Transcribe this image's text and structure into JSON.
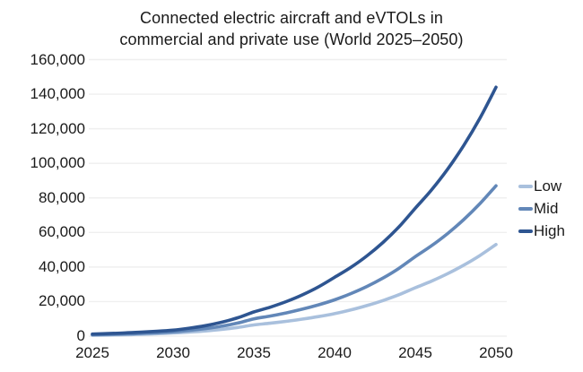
{
  "chart_data": {
    "type": "line",
    "title": "Connected electric aircraft and eVTOLs in commercial and private use (World 2025–2050)",
    "title_lines": [
      "Connected electric aircraft and eVTOLs in",
      "commercial and private use (World 2025–2050)"
    ],
    "x": [
      2025,
      2030,
      2035,
      2040,
      2045,
      2050
    ],
    "xtick_labels": [
      "2025",
      "2030",
      "2035",
      "2040",
      "2045",
      "2050"
    ],
    "ytick_values": [
      0,
      20000,
      40000,
      60000,
      80000,
      100000,
      120000,
      140000,
      160000
    ],
    "ytick_labels": [
      "0",
      "20,000",
      "40,000",
      "60,000",
      "80,000",
      "100,000",
      "120,000",
      "140,000",
      "160,000"
    ],
    "ylim": [
      0,
      160000
    ],
    "xlim": [
      2025,
      2050
    ],
    "xlabel": "",
    "ylabel": "",
    "grid": "horizontal",
    "legend_position": "right",
    "series": [
      {
        "name": "Low",
        "color": "#a9c0dd",
        "values": [
          500,
          1800,
          6500,
          13000,
          28000,
          53000
        ]
      },
      {
        "name": "Mid",
        "color": "#6287b8",
        "values": [
          800,
          2500,
          10000,
          21000,
          46000,
          87000
        ]
      },
      {
        "name": "High",
        "color": "#2e5591",
        "values": [
          1200,
          3500,
          14000,
          34000,
          74000,
          144000
        ]
      }
    ],
    "colors": {
      "grid": "#efefef",
      "text": "#1a1a1a",
      "background": "#ffffff"
    }
  }
}
